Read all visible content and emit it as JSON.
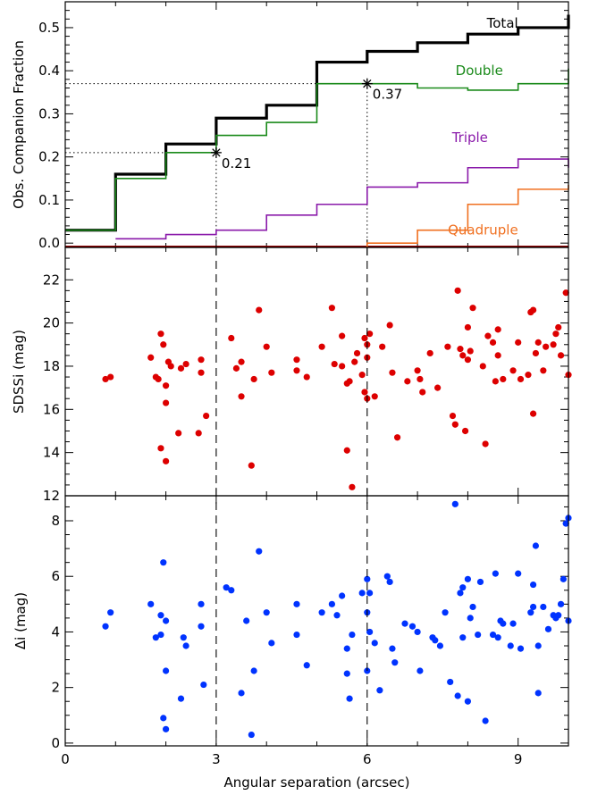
{
  "colors": {
    "total": "#000000",
    "double": "#1a8a1a",
    "triple": "#8a1aaa",
    "quadruple": "#f07020",
    "single_baseline": "#8b0000",
    "sdss_points": "#dd0000",
    "delta_points": "#0033ff"
  },
  "chart_data": [
    {
      "type": "line",
      "drawstyle": "steps",
      "xlabel": "",
      "ylabel": "Obs. Companion Fraction",
      "xlim": [
        0,
        10
      ],
      "ylim": [
        -0.01,
        0.56
      ],
      "yticks": [
        "0.0",
        "0.1",
        "0.2",
        "0.3",
        "0.4",
        "0.5"
      ],
      "x_edges": [
        0,
        1,
        2,
        3,
        4,
        5,
        6,
        7,
        8,
        9,
        10
      ],
      "series": [
        {
          "name": "Total",
          "values": [
            0.03,
            0.16,
            0.23,
            0.29,
            0.32,
            0.42,
            0.445,
            0.465,
            0.485,
            0.5,
            0.53
          ]
        },
        {
          "name": "Double",
          "values": [
            0.03,
            0.15,
            0.21,
            0.25,
            0.28,
            0.37,
            0.37,
            0.36,
            0.355,
            0.37,
            0.405
          ]
        },
        {
          "name": "Triple",
          "values": [
            0.0,
            0.01,
            0.02,
            0.03,
            0.065,
            0.09,
            0.13,
            0.14,
            0.175,
            0.195,
            0.175
          ]
        },
        {
          "name": "Quadruple",
          "values": [
            0.0,
            0.0,
            0.0,
            0.0,
            0.0,
            0.0,
            0.0,
            0.03,
            0.09,
            0.125,
            0.135
          ]
        }
      ],
      "single_baseline": -0.01,
      "annotations": [
        {
          "x": 3,
          "y": 0.21,
          "label": "0.21"
        },
        {
          "x": 6,
          "y": 0.37,
          "label": "0.37"
        }
      ]
    },
    {
      "type": "scatter",
      "xlabel": "",
      "ylabel": "SDSSi (mag)",
      "xlim": [
        0,
        10
      ],
      "ylim": [
        12,
        23.5
      ],
      "yticks": [
        "12",
        "14",
        "16",
        "18",
        "20",
        "22"
      ],
      "points": [
        [
          0.8,
          17.4
        ],
        [
          0.9,
          17.5
        ],
        [
          1.7,
          18.4
        ],
        [
          1.8,
          17.5
        ],
        [
          1.85,
          17.4
        ],
        [
          1.9,
          19.5
        ],
        [
          1.95,
          19.0
        ],
        [
          1.9,
          14.2
        ],
        [
          2.0,
          13.6
        ],
        [
          2.0,
          16.3
        ],
        [
          2.0,
          17.1
        ],
        [
          2.05,
          18.2
        ],
        [
          2.1,
          18.0
        ],
        [
          2.25,
          14.9
        ],
        [
          2.3,
          17.9
        ],
        [
          2.4,
          18.1
        ],
        [
          2.7,
          18.3
        ],
        [
          2.7,
          17.7
        ],
        [
          2.65,
          14.9
        ],
        [
          2.8,
          15.7
        ],
        [
          3.3,
          19.3
        ],
        [
          3.4,
          17.9
        ],
        [
          3.5,
          16.6
        ],
        [
          3.5,
          18.2
        ],
        [
          3.7,
          13.4
        ],
        [
          3.75,
          17.4
        ],
        [
          3.85,
          20.6
        ],
        [
          4.0,
          18.9
        ],
        [
          4.1,
          17.7
        ],
        [
          4.6,
          17.8
        ],
        [
          4.6,
          18.3
        ],
        [
          4.8,
          17.5
        ],
        [
          5.1,
          18.9
        ],
        [
          5.3,
          20.7
        ],
        [
          5.35,
          18.1
        ],
        [
          5.5,
          19.4
        ],
        [
          5.5,
          18.0
        ],
        [
          5.6,
          14.1
        ],
        [
          5.6,
          17.2
        ],
        [
          5.65,
          17.3
        ],
        [
          5.7,
          12.4
        ],
        [
          5.75,
          18.2
        ],
        [
          5.8,
          18.6
        ],
        [
          5.9,
          17.6
        ],
        [
          5.95,
          19.3
        ],
        [
          5.95,
          16.8
        ],
        [
          6.0,
          16.5
        ],
        [
          6.0,
          18.4
        ],
        [
          6.0,
          19.0
        ],
        [
          6.05,
          19.5
        ],
        [
          6.15,
          16.6
        ],
        [
          6.3,
          18.9
        ],
        [
          6.45,
          19.9
        ],
        [
          6.5,
          17.7
        ],
        [
          6.6,
          14.7
        ],
        [
          6.8,
          17.3
        ],
        [
          7.0,
          17.8
        ],
        [
          7.05,
          17.4
        ],
        [
          7.1,
          16.8
        ],
        [
          7.25,
          18.6
        ],
        [
          7.4,
          17.0
        ],
        [
          7.6,
          18.9
        ],
        [
          7.7,
          15.7
        ],
        [
          7.75,
          15.3
        ],
        [
          7.8,
          21.5
        ],
        [
          7.85,
          18.8
        ],
        [
          7.9,
          18.5
        ],
        [
          7.95,
          15.0
        ],
        [
          8.0,
          19.8
        ],
        [
          8.0,
          18.3
        ],
        [
          8.05,
          18.7
        ],
        [
          8.1,
          20.7
        ],
        [
          8.3,
          18.0
        ],
        [
          8.35,
          14.4
        ],
        [
          8.4,
          19.4
        ],
        [
          8.5,
          19.1
        ],
        [
          8.55,
          17.3
        ],
        [
          8.6,
          19.7
        ],
        [
          8.6,
          18.5
        ],
        [
          8.7,
          17.4
        ],
        [
          8.9,
          17.8
        ],
        [
          9.0,
          19.1
        ],
        [
          9.05,
          17.4
        ],
        [
          9.2,
          17.6
        ],
        [
          9.25,
          20.5
        ],
        [
          9.3,
          20.6
        ],
        [
          9.3,
          15.8
        ],
        [
          9.35,
          18.6
        ],
        [
          9.4,
          19.1
        ],
        [
          9.5,
          17.8
        ],
        [
          9.55,
          18.9
        ],
        [
          9.7,
          19.0
        ],
        [
          9.75,
          19.5
        ],
        [
          9.8,
          19.8
        ],
        [
          9.85,
          18.5
        ],
        [
          9.95,
          21.4
        ],
        [
          10.0,
          17.6
        ]
      ]
    },
    {
      "type": "scatter",
      "xlabel": "Angular separation (arcsec)",
      "ylabel": "Δi (mag)",
      "xlim": [
        0,
        10
      ],
      "ylim": [
        -0.1,
        8.9
      ],
      "xticks": [
        "0",
        "3",
        "6",
        "9"
      ],
      "xtick_values": [
        0,
        3,
        6,
        9
      ],
      "yticks": [
        "0",
        "2",
        "4",
        "6",
        "8"
      ],
      "points": [
        [
          0.8,
          4.2
        ],
        [
          0.9,
          4.7
        ],
        [
          1.7,
          5.0
        ],
        [
          1.8,
          3.8
        ],
        [
          1.9,
          3.9
        ],
        [
          1.9,
          4.6
        ],
        [
          1.95,
          6.5
        ],
        [
          1.95,
          0.9
        ],
        [
          2.0,
          0.5
        ],
        [
          2.0,
          2.6
        ],
        [
          2.0,
          4.4
        ],
        [
          2.3,
          1.6
        ],
        [
          2.35,
          3.8
        ],
        [
          2.4,
          3.5
        ],
        [
          2.7,
          5.0
        ],
        [
          2.7,
          4.2
        ],
        [
          2.75,
          2.1
        ],
        [
          3.2,
          5.6
        ],
        [
          3.3,
          5.5
        ],
        [
          3.5,
          1.8
        ],
        [
          3.6,
          4.4
        ],
        [
          3.7,
          0.3
        ],
        [
          3.75,
          2.6
        ],
        [
          3.85,
          6.9
        ],
        [
          4.0,
          4.7
        ],
        [
          4.1,
          3.6
        ],
        [
          4.6,
          3.9
        ],
        [
          4.6,
          5.0
        ],
        [
          4.8,
          2.8
        ],
        [
          5.1,
          4.7
        ],
        [
          5.3,
          5.0
        ],
        [
          5.4,
          4.6
        ],
        [
          5.5,
          5.3
        ],
        [
          5.6,
          2.5
        ],
        [
          5.6,
          3.4
        ],
        [
          5.65,
          1.6
        ],
        [
          5.7,
          3.9
        ],
        [
          5.9,
          5.4
        ],
        [
          6.0,
          5.9
        ],
        [
          6.0,
          4.7
        ],
        [
          6.0,
          2.6
        ],
        [
          6.05,
          4.0
        ],
        [
          6.05,
          5.4
        ],
        [
          6.15,
          3.6
        ],
        [
          6.25,
          1.9
        ],
        [
          6.4,
          6.0
        ],
        [
          6.45,
          5.8
        ],
        [
          6.5,
          3.4
        ],
        [
          6.55,
          2.9
        ],
        [
          6.75,
          4.3
        ],
        [
          6.9,
          4.2
        ],
        [
          7.0,
          4.0
        ],
        [
          7.05,
          2.6
        ],
        [
          7.3,
          3.8
        ],
        [
          7.35,
          3.7
        ],
        [
          7.45,
          3.5
        ],
        [
          7.55,
          4.7
        ],
        [
          7.65,
          2.2
        ],
        [
          7.75,
          8.6
        ],
        [
          7.8,
          1.7
        ],
        [
          7.85,
          5.4
        ],
        [
          7.9,
          3.8
        ],
        [
          7.9,
          5.6
        ],
        [
          8.0,
          1.5
        ],
        [
          8.0,
          5.9
        ],
        [
          8.05,
          4.5
        ],
        [
          8.1,
          4.9
        ],
        [
          8.2,
          3.9
        ],
        [
          8.25,
          5.8
        ],
        [
          8.35,
          0.8
        ],
        [
          8.5,
          3.9
        ],
        [
          8.55,
          6.1
        ],
        [
          8.6,
          3.8
        ],
        [
          8.65,
          4.4
        ],
        [
          8.7,
          4.3
        ],
        [
          8.85,
          3.5
        ],
        [
          8.9,
          4.3
        ],
        [
          9.0,
          6.1
        ],
        [
          9.05,
          3.4
        ],
        [
          9.25,
          4.7
        ],
        [
          9.3,
          4.9
        ],
        [
          9.3,
          5.7
        ],
        [
          9.35,
          7.1
        ],
        [
          9.4,
          3.5
        ],
        [
          9.4,
          1.8
        ],
        [
          9.5,
          4.9
        ],
        [
          9.6,
          4.1
        ],
        [
          9.7,
          4.6
        ],
        [
          9.75,
          4.5
        ],
        [
          9.8,
          4.6
        ],
        [
          9.85,
          5.0
        ],
        [
          9.9,
          5.9
        ],
        [
          9.95,
          7.9
        ],
        [
          10.0,
          8.1
        ],
        [
          10.0,
          4.4
        ]
      ]
    }
  ]
}
